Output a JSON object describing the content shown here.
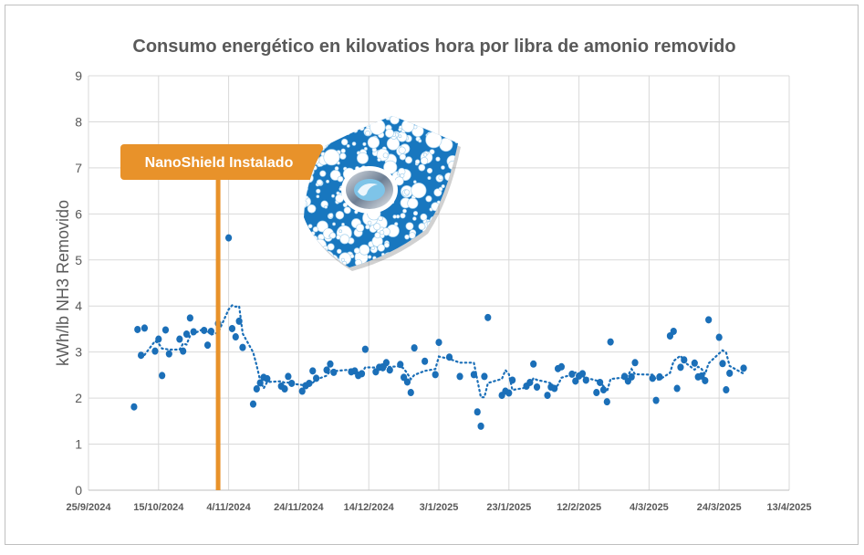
{
  "chart_data": {
    "type": "scatter",
    "title": "Consumo energético en kilovatios hora por libra de amonio removido",
    "xlabel": "",
    "ylabel": "kWh/lb NH3 Removido",
    "xlim": [
      "2024-09-25",
      "2025-04-13"
    ],
    "ylim": [
      0,
      9
    ],
    "x_ticks": [
      "25/9/2024",
      "15/10/2024",
      "4/11/2024",
      "24/11/2024",
      "14/12/2024",
      "3/1/2025",
      "23/1/2025",
      "12/2/2025",
      "4/3/2025",
      "24/3/2025",
      "13/4/2025"
    ],
    "y_ticks": [
      "0",
      "1",
      "2",
      "3",
      "4",
      "5",
      "6",
      "7",
      "8",
      "9"
    ],
    "grid": true,
    "legend": "none",
    "colors": {
      "points": "#1B6FB8",
      "annotation": "#E8922A",
      "grid": "#D9D9D9",
      "text": "#595959"
    },
    "trendline": {
      "type": "moving_average",
      "period": 4,
      "style": "dotted"
    },
    "annotation": {
      "label": "NanoShield Instalado",
      "date": "2024-11-01"
    },
    "logo": {
      "name": "shield-logo-icon"
    },
    "points": [
      [
        "2024-10-08",
        1.81
      ],
      [
        "2024-10-09",
        3.49
      ],
      [
        "2024-10-10",
        2.93
      ],
      [
        "2024-10-11",
        3.52
      ],
      [
        "2024-10-14",
        3.02
      ],
      [
        "2024-10-15",
        3.28
      ],
      [
        "2024-10-16",
        2.49
      ],
      [
        "2024-10-17",
        3.48
      ],
      [
        "2024-10-18",
        2.96
      ],
      [
        "2024-10-21",
        3.28
      ],
      [
        "2024-10-22",
        3.02
      ],
      [
        "2024-10-23",
        3.39
      ],
      [
        "2024-10-24",
        3.74
      ],
      [
        "2024-10-25",
        3.44
      ],
      [
        "2024-10-28",
        3.47
      ],
      [
        "2024-10-29",
        3.15
      ],
      [
        "2024-10-30",
        3.45
      ],
      [
        "2024-11-01",
        3.62
      ],
      [
        "2024-11-04",
        5.48
      ],
      [
        "2024-11-05",
        3.51
      ],
      [
        "2024-11-06",
        3.33
      ],
      [
        "2024-11-07",
        3.67
      ],
      [
        "2024-11-08",
        3.1
      ],
      [
        "2024-11-11",
        1.87
      ],
      [
        "2024-11-12",
        2.2
      ],
      [
        "2024-11-13",
        2.33
      ],
      [
        "2024-11-14",
        2.45
      ],
      [
        "2024-11-15",
        2.42
      ],
      [
        "2024-11-19",
        2.26
      ],
      [
        "2024-11-20",
        2.2
      ],
      [
        "2024-11-21",
        2.47
      ],
      [
        "2024-11-22",
        2.32
      ],
      [
        "2024-11-25",
        2.15
      ],
      [
        "2024-11-26",
        2.27
      ],
      [
        "2024-11-27",
        2.32
      ],
      [
        "2024-11-28",
        2.59
      ],
      [
        "2024-11-29",
        2.43
      ],
      [
        "2024-12-02",
        2.61
      ],
      [
        "2024-12-03",
        2.74
      ],
      [
        "2024-12-04",
        2.56
      ],
      [
        "2024-12-09",
        2.57
      ],
      [
        "2024-12-10",
        2.59
      ],
      [
        "2024-12-11",
        2.49
      ],
      [
        "2024-12-12",
        2.53
      ],
      [
        "2024-12-13",
        3.06
      ],
      [
        "2024-12-16",
        2.57
      ],
      [
        "2024-12-17",
        2.67
      ],
      [
        "2024-12-18",
        2.66
      ],
      [
        "2024-12-19",
        2.77
      ],
      [
        "2024-12-20",
        2.61
      ],
      [
        "2024-12-23",
        2.73
      ],
      [
        "2024-12-24",
        2.45
      ],
      [
        "2024-12-25",
        2.35
      ],
      [
        "2024-12-26",
        2.12
      ],
      [
        "2024-12-27",
        3.09
      ],
      [
        "2024-12-30",
        2.8
      ],
      [
        "2025-01-02",
        2.51
      ],
      [
        "2025-01-03",
        3.21
      ],
      [
        "2025-01-06",
        2.89
      ],
      [
        "2025-01-09",
        2.47
      ],
      [
        "2025-01-13",
        2.51
      ],
      [
        "2025-01-14",
        1.7
      ],
      [
        "2025-01-15",
        1.39
      ],
      [
        "2025-01-16",
        2.47
      ],
      [
        "2025-01-17",
        3.75
      ],
      [
        "2025-01-21",
        2.06
      ],
      [
        "2025-01-22",
        2.15
      ],
      [
        "2025-01-23",
        2.11
      ],
      [
        "2025-01-24",
        2.39
      ],
      [
        "2025-01-28",
        2.26
      ],
      [
        "2025-01-29",
        2.34
      ],
      [
        "2025-01-30",
        2.74
      ],
      [
        "2025-01-31",
        2.24
      ],
      [
        "2025-02-03",
        2.06
      ],
      [
        "2025-02-04",
        2.24
      ],
      [
        "2025-02-05",
        2.21
      ],
      [
        "2025-02-06",
        2.64
      ],
      [
        "2025-02-07",
        2.68
      ],
      [
        "2025-02-10",
        2.52
      ],
      [
        "2025-02-11",
        2.37
      ],
      [
        "2025-02-12",
        2.48
      ],
      [
        "2025-02-13",
        2.53
      ],
      [
        "2025-02-14",
        2.39
      ],
      [
        "2025-02-17",
        2.12
      ],
      [
        "2025-02-18",
        2.34
      ],
      [
        "2025-02-19",
        2.18
      ],
      [
        "2025-02-20",
        1.92
      ],
      [
        "2025-02-21",
        3.22
      ],
      [
        "2025-02-25",
        2.47
      ],
      [
        "2025-02-26",
        2.37
      ],
      [
        "2025-02-27",
        2.46
      ],
      [
        "2025-02-28",
        2.77
      ],
      [
        "2025-03-05",
        2.43
      ],
      [
        "2025-03-06",
        1.95
      ],
      [
        "2025-03-07",
        2.46
      ],
      [
        "2025-03-10",
        3.35
      ],
      [
        "2025-03-11",
        3.45
      ],
      [
        "2025-03-12",
        2.21
      ],
      [
        "2025-03-13",
        2.67
      ],
      [
        "2025-03-14",
        2.83
      ],
      [
        "2025-03-17",
        2.76
      ],
      [
        "2025-03-18",
        2.46
      ],
      [
        "2025-03-19",
        2.48
      ],
      [
        "2025-03-20",
        2.38
      ],
      [
        "2025-03-21",
        3.7
      ],
      [
        "2025-03-24",
        3.32
      ],
      [
        "2025-03-25",
        2.75
      ],
      [
        "2025-03-26",
        2.18
      ],
      [
        "2025-03-27",
        2.54
      ],
      [
        "2025-03-31",
        2.65
      ]
    ]
  }
}
